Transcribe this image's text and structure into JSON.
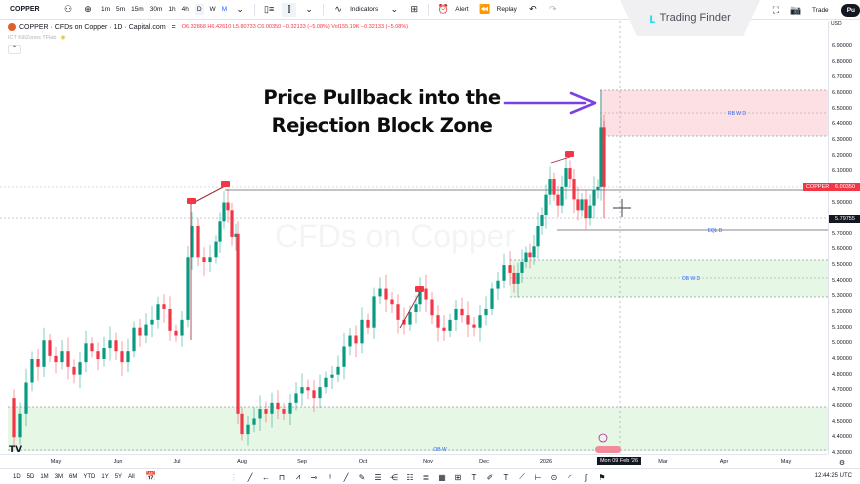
{
  "toolbar": {
    "symbol": "COPPER",
    "timeframes": [
      "1m",
      "5m",
      "15m",
      "30m",
      "1h",
      "4h",
      "D",
      "W",
      "M"
    ],
    "active_timeframe": "D",
    "indicators_label": "Indicators",
    "alert_label": "Alert",
    "replay_label": "Replay",
    "trade_label": "Trade",
    "publish_label": "Pu"
  },
  "branding": {
    "logo_text": "Trading Finder"
  },
  "legend": {
    "title": "COPPER · CFDs on Copper · 1D · Capital.com",
    "eq_sign": "=",
    "ohlc": "O6.32868 H6.42610 L5.80733 C6.00350 −0.32133 (−5.08%) Vol155.19K −0.32133 (−5.08%)",
    "indicator": "ICT KillZones TFlab",
    "currency": "USD"
  },
  "annotation": {
    "headline_line1": "Price Pullback into the",
    "headline_line2": "Rejection Block Zone",
    "arrow_color": "#7b3fe4"
  },
  "watermark": "CFDs on Copper",
  "zones": {
    "rb_label": "RB W D",
    "eql_label": "EQL D",
    "ob_wd_label": "OB W D",
    "ob_w_label": "OB W"
  },
  "price_axis": {
    "labels": [
      "6.90000",
      "6.80000",
      "6.70000",
      "6.60000",
      "6.50000",
      "6.40000",
      "6.30000",
      "6.20000",
      "6.10000",
      "5.90000",
      "5.70000",
      "5.60000",
      "5.50000",
      "5.40000",
      "5.30000",
      "5.20000",
      "5.10000",
      "5.00000",
      "4.90000",
      "4.80000",
      "4.70000",
      "4.60000",
      "4.50000",
      "4.40000",
      "4.30000"
    ],
    "current_price": "6.00350",
    "current_symbol": "COPPER",
    "crosshair_price": "5.79755"
  },
  "time_axis": {
    "labels": [
      "May",
      "Jun",
      "Jul",
      "Aug",
      "Sep",
      "Oct",
      "Nov",
      "Dec",
      "2026",
      "Mar",
      "Apr",
      "May"
    ],
    "crosshair_date": "Mon 09 Feb '26"
  },
  "bottombar": {
    "ranges": [
      "1D",
      "5D",
      "1M",
      "3M",
      "6M",
      "YTD",
      "1Y",
      "5Y",
      "All"
    ],
    "clock": "12:44:25 UTC"
  },
  "colors": {
    "up": "#089981",
    "down": "#f23645",
    "rb_zone": "#fde0e4",
    "ob_zone": "#e6f7e6",
    "zone_label": "#2962ff"
  },
  "chart_data": {
    "type": "candlestick",
    "title": "COPPER · CFDs on Copper · 1D · Capital.com",
    "ylim": [
      4.3,
      6.9
    ],
    "current_close": 6.0035,
    "zones": [
      {
        "label": "RB W D",
        "top": 6.62,
        "mid": 6.48,
        "bottom": 6.33,
        "kind": "rejection-block"
      },
      {
        "label": "OB W D",
        "top": 5.53,
        "mid": 5.42,
        "bottom": 5.3,
        "kind": "order-block"
      },
      {
        "label": "OB W",
        "top": 4.6,
        "bottom": 4.33,
        "kind": "order-block"
      },
      {
        "label": "EQL D",
        "level": 5.72,
        "kind": "equal-lows"
      }
    ]
  }
}
